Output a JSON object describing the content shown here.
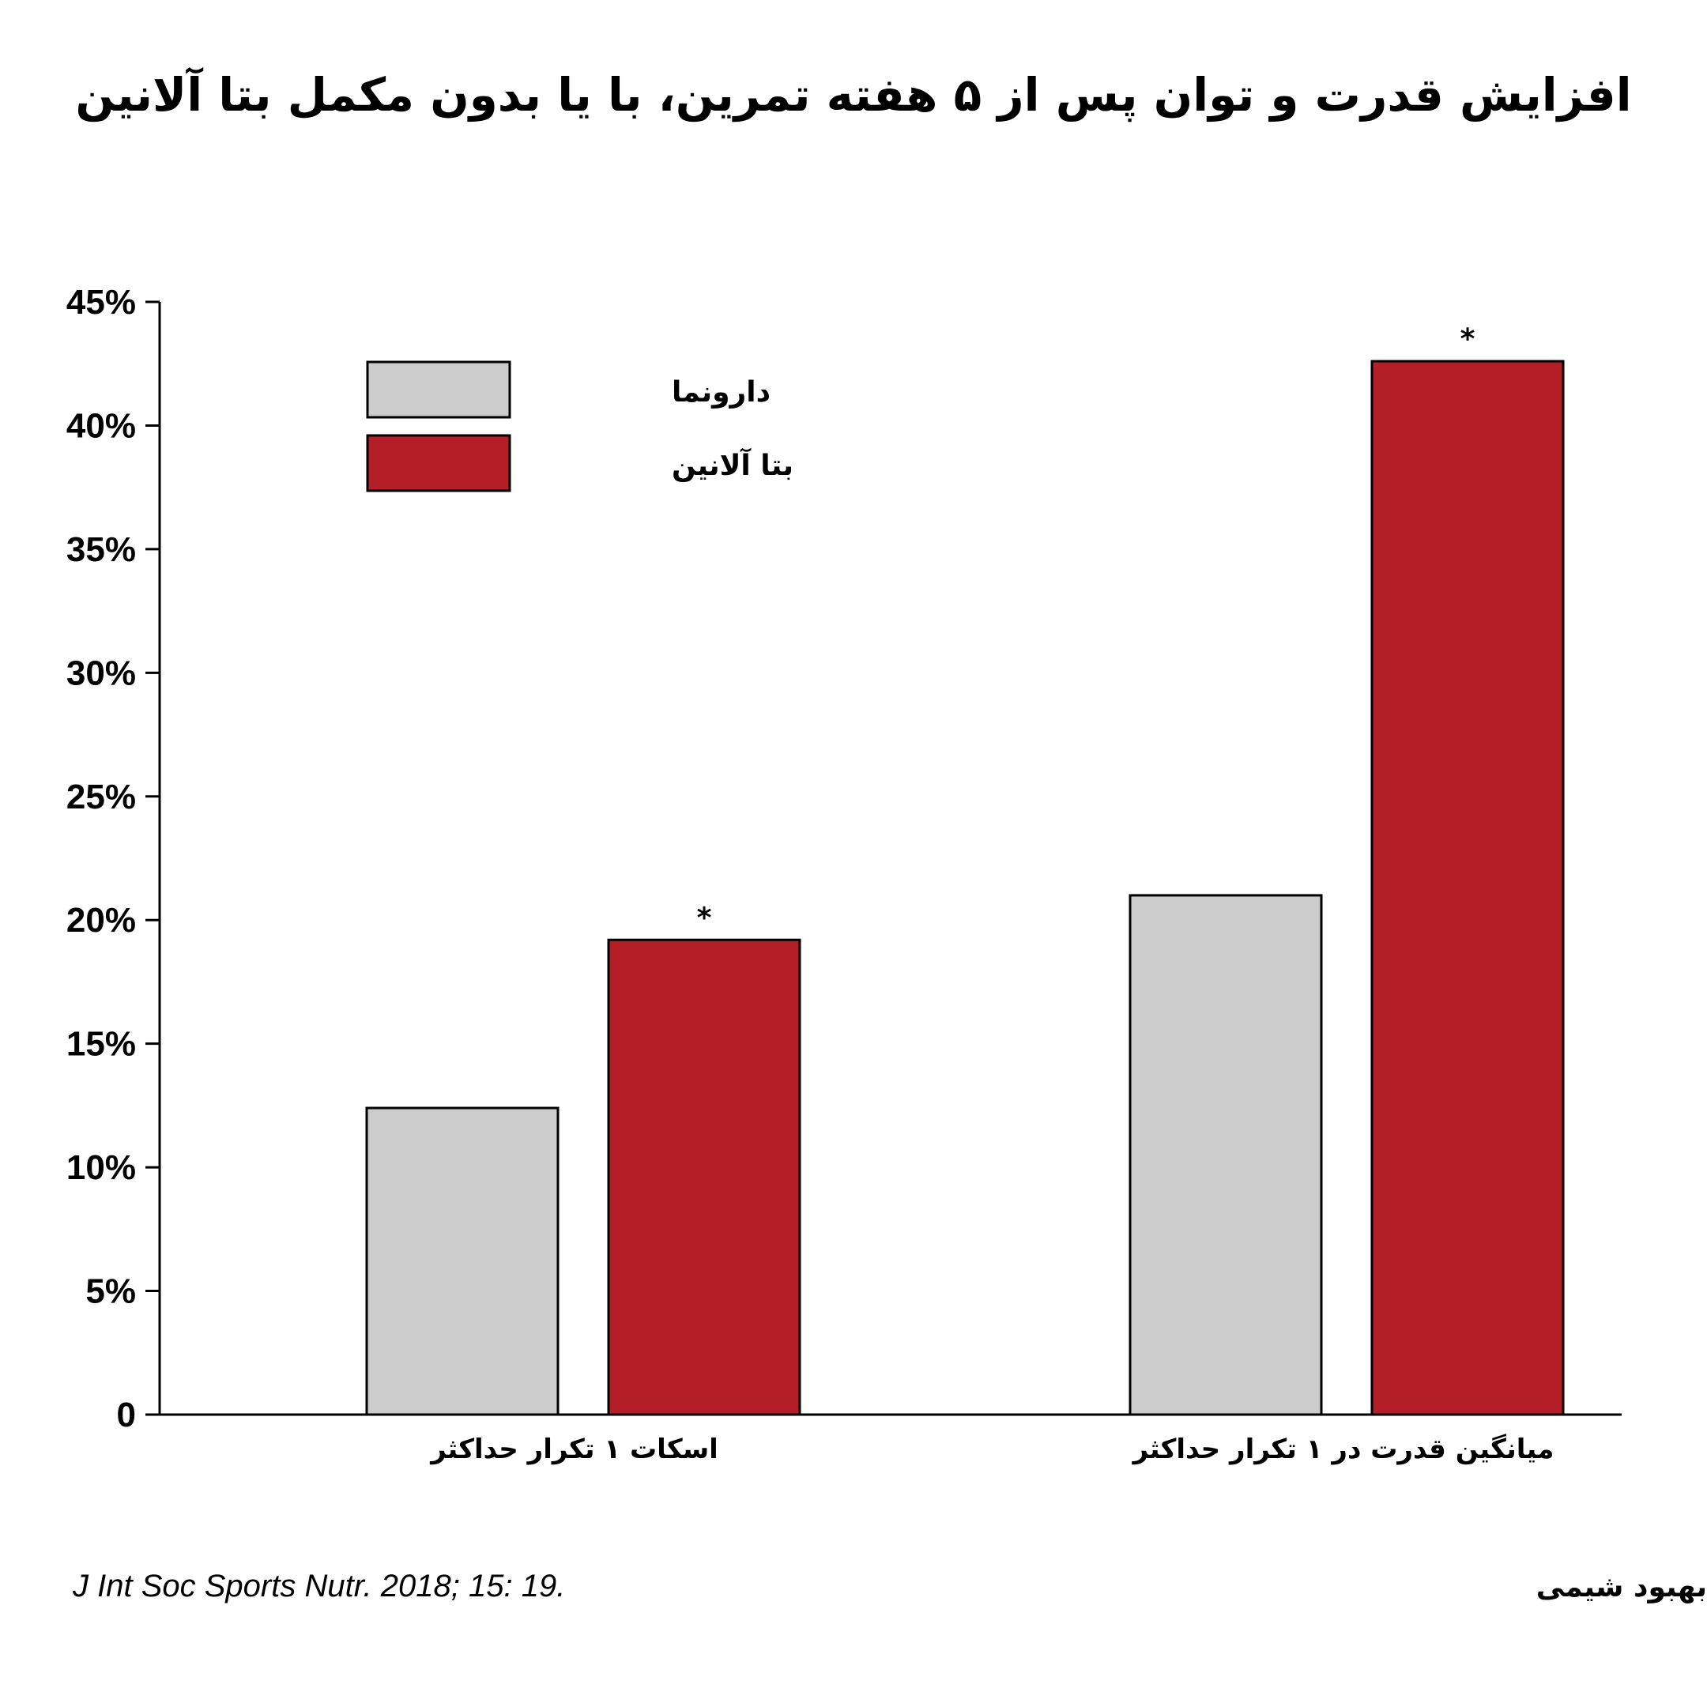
{
  "chart_data": {
    "type": "bar",
    "title": "افزایش قدرت و توان پس از ۵ هفته تمرین، با یا بدون مکمل بتا آلانین",
    "categories": [
      "اسکات ۱ تکرار حداکثر",
      "میانگین قدرت در ۱ تکرار حداکثر"
    ],
    "series": [
      {
        "name": "دارونما",
        "values": [
          12.4,
          21.0
        ],
        "color": "#cccccc",
        "markers": [
          "",
          ""
        ]
      },
      {
        "name": "بتا آلانین",
        "values": [
          19.2,
          42.6
        ],
        "color": "#b41f27",
        "markers": [
          "*",
          "*"
        ]
      }
    ],
    "ylim": [
      0,
      45
    ],
    "yticks": [
      0,
      5,
      10,
      15,
      20,
      25,
      30,
      35,
      40,
      45
    ],
    "ytick_labels": [
      "0",
      "5%",
      "10%",
      "15%",
      "20%",
      "25%",
      "30%",
      "35%",
      "40%",
      "45%"
    ],
    "xlabel": "",
    "ylabel": "",
    "grid": false,
    "legend_position": "top-left"
  },
  "footer": {
    "citation": "J Int Soc Sports Nutr. 2018; 15: 19.",
    "author": "بهبود شیمی"
  }
}
